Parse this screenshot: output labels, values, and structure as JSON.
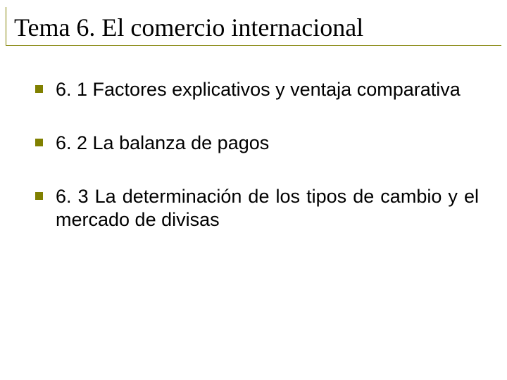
{
  "slide": {
    "title": "Tema 6. El comercio internacional",
    "title_fontsize": 36,
    "title_font": "Times New Roman",
    "title_color": "#000000",
    "rule_color": "#808000",
    "background_color": "#ffffff",
    "body_font": "Arial",
    "body_fontsize": 27,
    "body_color": "#000000",
    "bullet_color": "#808000",
    "bullet_size": 11,
    "items": [
      {
        "text": "6. 1 Factores explicativos y ventaja comparativa"
      },
      {
        "text": "6. 2 La balanza de pagos"
      },
      {
        "text": "6. 3 La determinación de los tipos de cambio y el mercado de divisas"
      }
    ]
  }
}
